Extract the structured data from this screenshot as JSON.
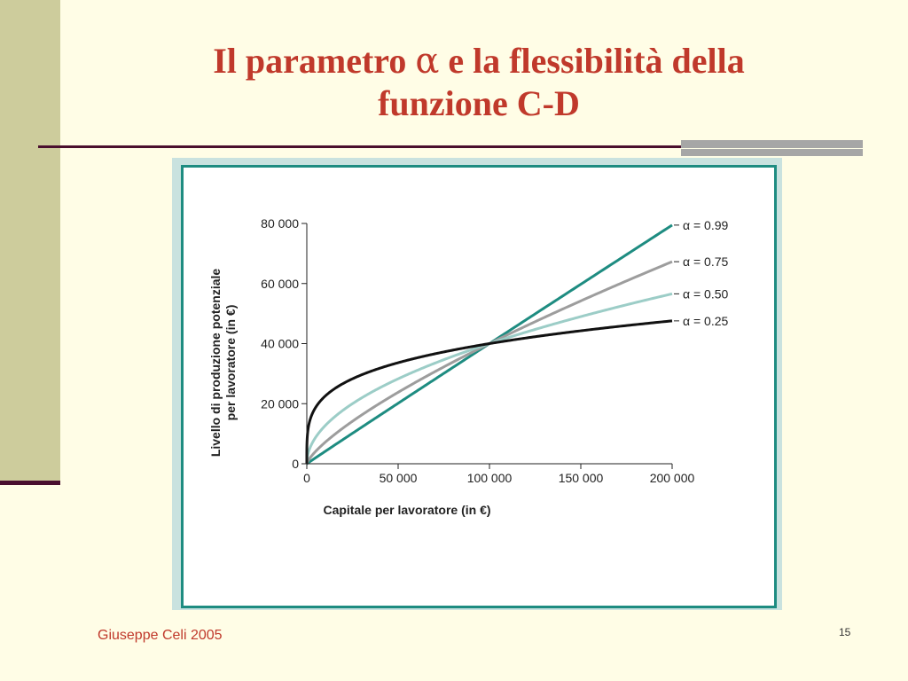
{
  "slide": {
    "title_line1_pre": "Il parametro ",
    "title_alpha": "α",
    "title_line1_post": " e la flessibilità della",
    "title_line2": "funzione C-D",
    "footer": "Giuseppe Celi 2005",
    "page_number": "15"
  },
  "chart_data": {
    "type": "line",
    "xlabel": "Capitale per lavoratore (in €)",
    "ylabel_line1": "Livello di produzione potenziale",
    "ylabel_line2": "per lavoratore (in €)",
    "xlim": [
      0,
      200000
    ],
    "ylim": [
      0,
      80000
    ],
    "x_ticks": [
      0,
      50000,
      100000,
      150000,
      200000
    ],
    "x_tick_labels": [
      "0",
      "50 000",
      "100 000",
      "150 000",
      "200 000"
    ],
    "y_ticks": [
      0,
      20000,
      40000,
      60000,
      80000
    ],
    "y_tick_labels": [
      "0",
      "20 000",
      "40 000",
      "60 000",
      "80 000"
    ],
    "grid": false,
    "legend_position": "right-end-labels",
    "series": [
      {
        "name": "α = 0.99",
        "alpha": 0.99,
        "color": "#1e8c81",
        "x": [
          0,
          50000,
          100000,
          150000,
          200000
        ],
        "y": [
          0,
          20100,
          40000,
          59900,
          79700
        ]
      },
      {
        "name": "α = 0.75",
        "alpha": 0.75,
        "color": "#9d9d9d",
        "x": [
          0,
          50000,
          100000,
          150000,
          200000
        ],
        "y": [
          0,
          23800,
          40000,
          54200,
          67300
        ]
      },
      {
        "name": "α = 0.50",
        "alpha": 0.5,
        "color": "#9ccdc7",
        "x": [
          0,
          50000,
          100000,
          150000,
          200000
        ],
        "y": [
          0,
          28300,
          40000,
          49000,
          56600
        ]
      },
      {
        "name": "α = 0.25",
        "alpha": 0.25,
        "color": "#111111",
        "x": [
          0,
          50000,
          100000,
          150000,
          200000
        ],
        "y": [
          0,
          33600,
          40000,
          44300,
          47600
        ]
      }
    ]
  }
}
